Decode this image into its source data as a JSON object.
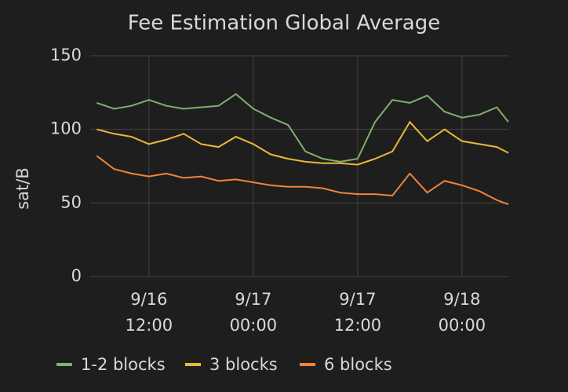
{
  "chart_data": {
    "type": "line",
    "title": "Fee Estimation Global Average",
    "ylabel": "sat/B",
    "x": [
      "9/16 06:00",
      "9/16 08:00",
      "9/16 10:00",
      "9/16 12:00",
      "9/16 14:00",
      "9/16 16:00",
      "9/16 18:00",
      "9/16 20:00",
      "9/16 22:00",
      "9/17 00:00",
      "9/17 02:00",
      "9/17 04:00",
      "9/17 06:00",
      "9/17 08:00",
      "9/17 10:00",
      "9/17 12:00",
      "9/17 14:00",
      "9/17 16:00",
      "9/17 18:00",
      "9/17 20:00",
      "9/17 22:00",
      "9/18 00:00",
      "9/18 02:00",
      "9/18 04:00",
      "9/18 05:20"
    ],
    "series": [
      {
        "name": "1-2 blocks",
        "color": "#7eb26d",
        "values": [
          118,
          114,
          116,
          120,
          116,
          114,
          115,
          116,
          124,
          114,
          108,
          103,
          85,
          80,
          78,
          80,
          105,
          120,
          118,
          123,
          112,
          108,
          110,
          115,
          105
        ]
      },
      {
        "name": "3 blocks",
        "color": "#eab839",
        "values": [
          100,
          97,
          95,
          90,
          93,
          97,
          90,
          88,
          95,
          90,
          83,
          80,
          78,
          77,
          77,
          76,
          80,
          85,
          105,
          92,
          100,
          92,
          90,
          88,
          84
        ]
      },
      {
        "name": "6 blocks",
        "color": "#ef843c",
        "values": [
          82,
          73,
          70,
          68,
          70,
          67,
          68,
          65,
          66,
          64,
          62,
          61,
          61,
          60,
          57,
          56,
          56,
          55,
          70,
          57,
          65,
          62,
          58,
          52,
          49
        ]
      }
    ],
    "xlim": [
      "9/16 05:15",
      "9/18 05:20"
    ],
    "xticks": [
      "9/16 12:00",
      "9/17 00:00",
      "9/17 12:00",
      "9/18 00:00"
    ],
    "ylim": [
      0,
      150
    ],
    "yticks": [
      0,
      50,
      100,
      150
    ],
    "grid": true,
    "legend": "bottom"
  }
}
